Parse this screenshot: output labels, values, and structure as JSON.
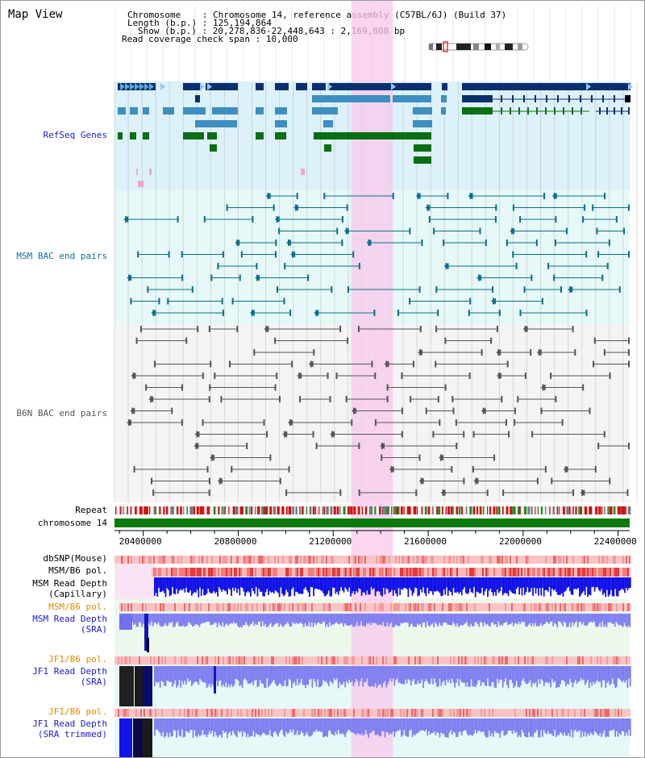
{
  "panel_title": "Map View",
  "header_info": {
    "chromosome_key": "Chromosome",
    "chromosome_value": "Chromosome 14, reference assembly (C57BL/6J) (Build 37)",
    "length_key": "Length (b.p.)",
    "length_value": "125,194,864",
    "show_key": "Show (b.p.)",
    "show_value": "20,278,836-22,448,643 : 2,169,808 bp",
    "coverage_key": "Read coverage check span",
    "coverage_value": "10,000"
  },
  "tracks": {
    "refseq": "RefSeq Genes",
    "msm_bac": "MSM BAC end pairs",
    "b6n_bac": "B6N BAC end pairs",
    "repeat": "Repeat",
    "chromosome": "chromosome 14",
    "dbsnp": "dbSNP(Mouse)",
    "msm_b6_pol_1": "MSM/B6 pol.",
    "msm_depth_cap_1": "MSM Read Depth",
    "msm_depth_cap_2": "(Capillary)",
    "msm_b6_pol_2": "MSM/B6 pol.",
    "msm_depth_sra_1": "MSM Read Depth",
    "msm_depth_sra_2": "(SRA)",
    "jf1_b6_pol_1": "JF1/B6 pol.",
    "jf1_depth_sra_1": "JF1 Read Depth",
    "jf1_depth_sra_2": "(SRA)",
    "jf1_b6_pol_2": "JF1/B6 pol.",
    "jf1_depth_trim_1": "JF1 Read Depth",
    "jf1_depth_trim_2": "(SRA trimmed)"
  },
  "axis": {
    "start": 20278836,
    "end": 22448643,
    "ticks": [
      "20400000",
      "20800000",
      "21200000",
      "21600000",
      "22000000",
      "22400000"
    ],
    "highlight_start": 21276000,
    "highlight_end": 21451000
  },
  "colors": {
    "refseq_dark": "#0a2f6e",
    "refseq_mid": "#3e8fc0",
    "refseq_green": "#0a6e14",
    "msm_bac": "#0a6e8a",
    "b6n_bac": "#555555",
    "highlight": "#f8c8ec",
    "chromosome_bar": "#0a7a0a",
    "depth_blue": "#1010e8",
    "depth_light": "#8080f0"
  }
}
